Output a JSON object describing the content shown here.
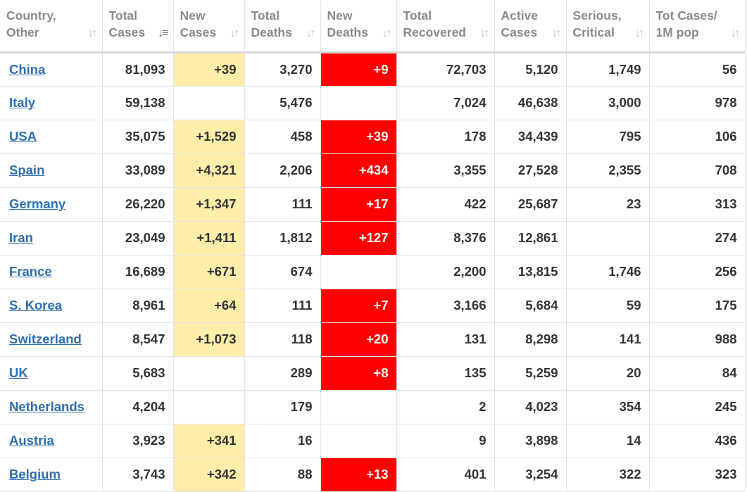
{
  "colors": {
    "new_cases_highlight": "#ffeeaa",
    "new_deaths_highlight": "#ff0000",
    "link": "#2e6fb0",
    "header_text": "#8a8a8a"
  },
  "columns": [
    {
      "line1": "Country,",
      "line2": "Other",
      "sort_icon": "sort-icon"
    },
    {
      "line1": "Total",
      "line2": "Cases",
      "sort_icon": "sort-desc-icon"
    },
    {
      "line1": "New",
      "line2": "Cases",
      "sort_icon": "sort-icon"
    },
    {
      "line1": "Total",
      "line2": "Deaths",
      "sort_icon": "sort-icon"
    },
    {
      "line1": "New",
      "line2": "Deaths",
      "sort_icon": "sort-icon"
    },
    {
      "line1": "Total",
      "line2": "Recovered",
      "sort_icon": "sort-icon"
    },
    {
      "line1": "Active",
      "line2": "Cases",
      "sort_icon": "sort-icon"
    },
    {
      "line1": "Serious,",
      "line2": "Critical",
      "sort_icon": "sort-icon"
    },
    {
      "line1": "Tot Cases/",
      "line2": "1M pop",
      "sort_icon": "sort-icon"
    }
  ],
  "rows": [
    {
      "country": "China",
      "total_cases": "81,093",
      "new_cases": "+39",
      "total_deaths": "3,270",
      "new_deaths": "+9",
      "total_recovered": "72,703",
      "active_cases": "5,120",
      "serious_critical": "1,749",
      "tot_cases_per_1m": "56"
    },
    {
      "country": "Italy",
      "total_cases": "59,138",
      "new_cases": "",
      "total_deaths": "5,476",
      "new_deaths": "",
      "total_recovered": "7,024",
      "active_cases": "46,638",
      "serious_critical": "3,000",
      "tot_cases_per_1m": "978"
    },
    {
      "country": "USA",
      "total_cases": "35,075",
      "new_cases": "+1,529",
      "total_deaths": "458",
      "new_deaths": "+39",
      "total_recovered": "178",
      "active_cases": "34,439",
      "serious_critical": "795",
      "tot_cases_per_1m": "106"
    },
    {
      "country": "Spain",
      "total_cases": "33,089",
      "new_cases": "+4,321",
      "total_deaths": "2,206",
      "new_deaths": "+434",
      "total_recovered": "3,355",
      "active_cases": "27,528",
      "serious_critical": "2,355",
      "tot_cases_per_1m": "708"
    },
    {
      "country": "Germany",
      "total_cases": "26,220",
      "new_cases": "+1,347",
      "total_deaths": "111",
      "new_deaths": "+17",
      "total_recovered": "422",
      "active_cases": "25,687",
      "serious_critical": "23",
      "tot_cases_per_1m": "313"
    },
    {
      "country": "Iran",
      "total_cases": "23,049",
      "new_cases": "+1,411",
      "total_deaths": "1,812",
      "new_deaths": "+127",
      "total_recovered": "8,376",
      "active_cases": "12,861",
      "serious_critical": "",
      "tot_cases_per_1m": "274"
    },
    {
      "country": "France",
      "total_cases": "16,689",
      "new_cases": "+671",
      "total_deaths": "674",
      "new_deaths": "",
      "total_recovered": "2,200",
      "active_cases": "13,815",
      "serious_critical": "1,746",
      "tot_cases_per_1m": "256"
    },
    {
      "country": "S. Korea",
      "total_cases": "8,961",
      "new_cases": "+64",
      "total_deaths": "111",
      "new_deaths": "+7",
      "total_recovered": "3,166",
      "active_cases": "5,684",
      "serious_critical": "59",
      "tot_cases_per_1m": "175"
    },
    {
      "country": "Switzerland",
      "total_cases": "8,547",
      "new_cases": "+1,073",
      "total_deaths": "118",
      "new_deaths": "+20",
      "total_recovered": "131",
      "active_cases": "8,298",
      "serious_critical": "141",
      "tot_cases_per_1m": "988"
    },
    {
      "country": "UK",
      "total_cases": "5,683",
      "new_cases": "",
      "total_deaths": "289",
      "new_deaths": "+8",
      "total_recovered": "135",
      "active_cases": "5,259",
      "serious_critical": "20",
      "tot_cases_per_1m": "84"
    },
    {
      "country": "Netherlands",
      "total_cases": "4,204",
      "new_cases": "",
      "total_deaths": "179",
      "new_deaths": "",
      "total_recovered": "2",
      "active_cases": "4,023",
      "serious_critical": "354",
      "tot_cases_per_1m": "245"
    },
    {
      "country": "Austria",
      "total_cases": "3,923",
      "new_cases": "+341",
      "total_deaths": "16",
      "new_deaths": "",
      "total_recovered": "9",
      "active_cases": "3,898",
      "serious_critical": "14",
      "tot_cases_per_1m": "436"
    },
    {
      "country": "Belgium",
      "total_cases": "3,743",
      "new_cases": "+342",
      "total_deaths": "88",
      "new_deaths": "+13",
      "total_recovered": "401",
      "active_cases": "3,254",
      "serious_critical": "322",
      "tot_cases_per_1m": "323"
    }
  ]
}
